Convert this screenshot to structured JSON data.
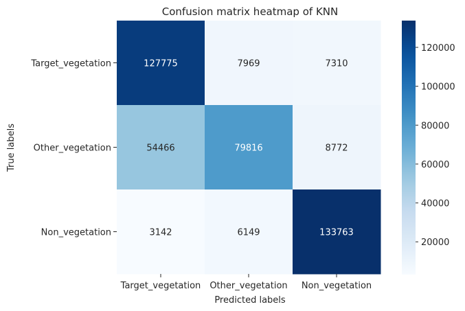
{
  "chart_data": {
    "type": "heatmap",
    "title": "Confusion matrix heatmap of KNN",
    "xlabel": "Predicted labels",
    "ylabel": "True labels",
    "x_categories": [
      "Target_vegetation",
      "Other_vegetation",
      "Non_vegetation"
    ],
    "y_categories": [
      "Target_vegetation",
      "Other_vegetation",
      "Non_vegetation"
    ],
    "values": [
      [
        127775,
        7969,
        7310
      ],
      [
        54466,
        79816,
        8772
      ],
      [
        3142,
        6149,
        133763
      ]
    ],
    "colormap": "Blues",
    "color_range": [
      3142,
      133763
    ],
    "colorbar_ticks": [
      "20000",
      "40000",
      "60000",
      "80000",
      "100000",
      "120000"
    ],
    "colorbar_tick_values": [
      20000,
      40000,
      60000,
      80000,
      100000,
      120000
    ],
    "annotation_colors": {
      "light_text": "#ffffff",
      "dark_text": "#262626"
    }
  }
}
